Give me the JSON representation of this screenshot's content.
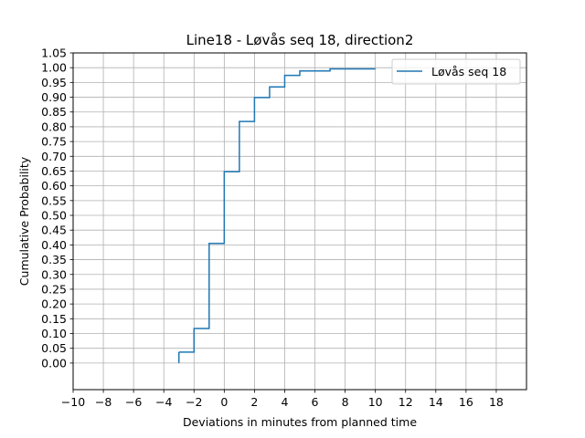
{
  "chart_data": {
    "type": "line",
    "drawstyle": "steps-post",
    "title": "Line18 - Løvås seq 18, direction2",
    "xlabel": "Deviations in minutes from planned time",
    "ylabel": "Cumulative Probability",
    "xlim": [
      -10,
      20
    ],
    "ylim": [
      -0.09,
      1.05
    ],
    "xticks": [
      -10,
      -8,
      -6,
      -4,
      -2,
      0,
      2,
      4,
      6,
      8,
      10,
      12,
      14,
      16,
      18
    ],
    "xtick_labels": [
      "−10",
      "−8",
      "−6",
      "−4",
      "−2",
      "0",
      "2",
      "4",
      "6",
      "8",
      "10",
      "12",
      "14",
      "16",
      "18"
    ],
    "yticks": [
      0,
      0.05,
      0.1,
      0.15,
      0.2,
      0.25,
      0.3,
      0.35,
      0.4,
      0.45,
      0.5,
      0.55,
      0.6,
      0.65,
      0.7,
      0.75,
      0.8,
      0.85,
      0.9,
      0.95,
      1.0,
      1.05
    ],
    "ytick_labels": [
      "0.00",
      "0.05",
      "0.10",
      "0.15",
      "0.20",
      "0.25",
      "0.30",
      "0.35",
      "0.40",
      "0.45",
      "0.50",
      "0.55",
      "0.60",
      "0.65",
      "0.70",
      "0.75",
      "0.80",
      "0.85",
      "0.90",
      "0.95",
      "1.00",
      "1.05"
    ],
    "grid": true,
    "legend_position": "top-right",
    "series": [
      {
        "name": "Løvås seq 18",
        "color": "#1f77b4",
        "x": [
          -3,
          -2,
          -1,
          0,
          1,
          2,
          3,
          4,
          5,
          7,
          10
        ],
        "y": [
          0.037,
          0.117,
          0.405,
          0.648,
          0.818,
          0.899,
          0.935,
          0.974,
          0.989,
          0.996,
          0.996
        ]
      }
    ]
  }
}
